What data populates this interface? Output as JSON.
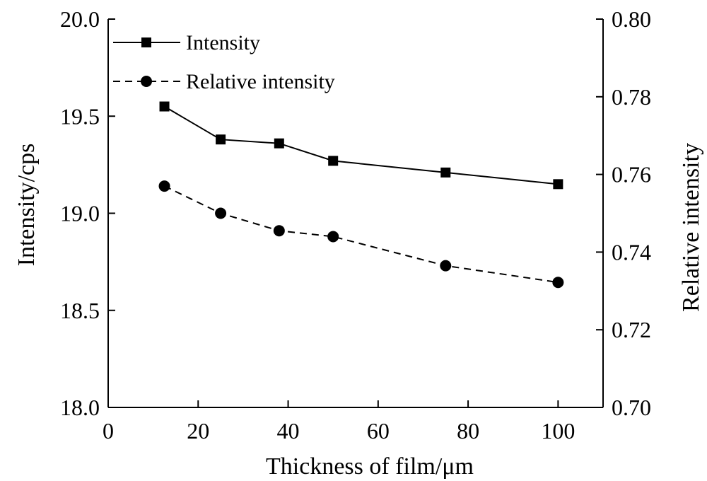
{
  "chart_data": {
    "type": "line",
    "xlabel": "Thickness of  film/μm",
    "ylabel": "Intensity/cps",
    "y2label": "Relative intensity",
    "xlim": [
      0,
      110
    ],
    "ylim": [
      18.0,
      20.0
    ],
    "y2lim": [
      0.7,
      0.8
    ],
    "xticks": [
      "0",
      "20",
      "40",
      "60",
      "80",
      "100"
    ],
    "yticks": [
      "18.0",
      "18.5",
      "19.0",
      "19.5",
      "20.0"
    ],
    "y2ticks": [
      "0.70",
      "0.72",
      "0.74",
      "0.76",
      "0.78",
      "0.80"
    ],
    "grid": false,
    "legend_position": "top-left",
    "series": [
      {
        "name": "Intensity",
        "axis": "left",
        "marker": "square",
        "line_style": "solid",
        "color": "#000000",
        "x": [
          12.5,
          25,
          38,
          50,
          75,
          100
        ],
        "y": [
          19.55,
          19.38,
          19.36,
          19.27,
          19.21,
          19.15
        ]
      },
      {
        "name": "Relative intensity",
        "axis": "right",
        "marker": "circle",
        "line_style": "dashed",
        "color": "#000000",
        "x": [
          12.5,
          25,
          38,
          50,
          75,
          100
        ],
        "y": [
          0.757,
          0.75,
          0.7455,
          0.744,
          0.7365,
          0.7322
        ]
      }
    ]
  }
}
